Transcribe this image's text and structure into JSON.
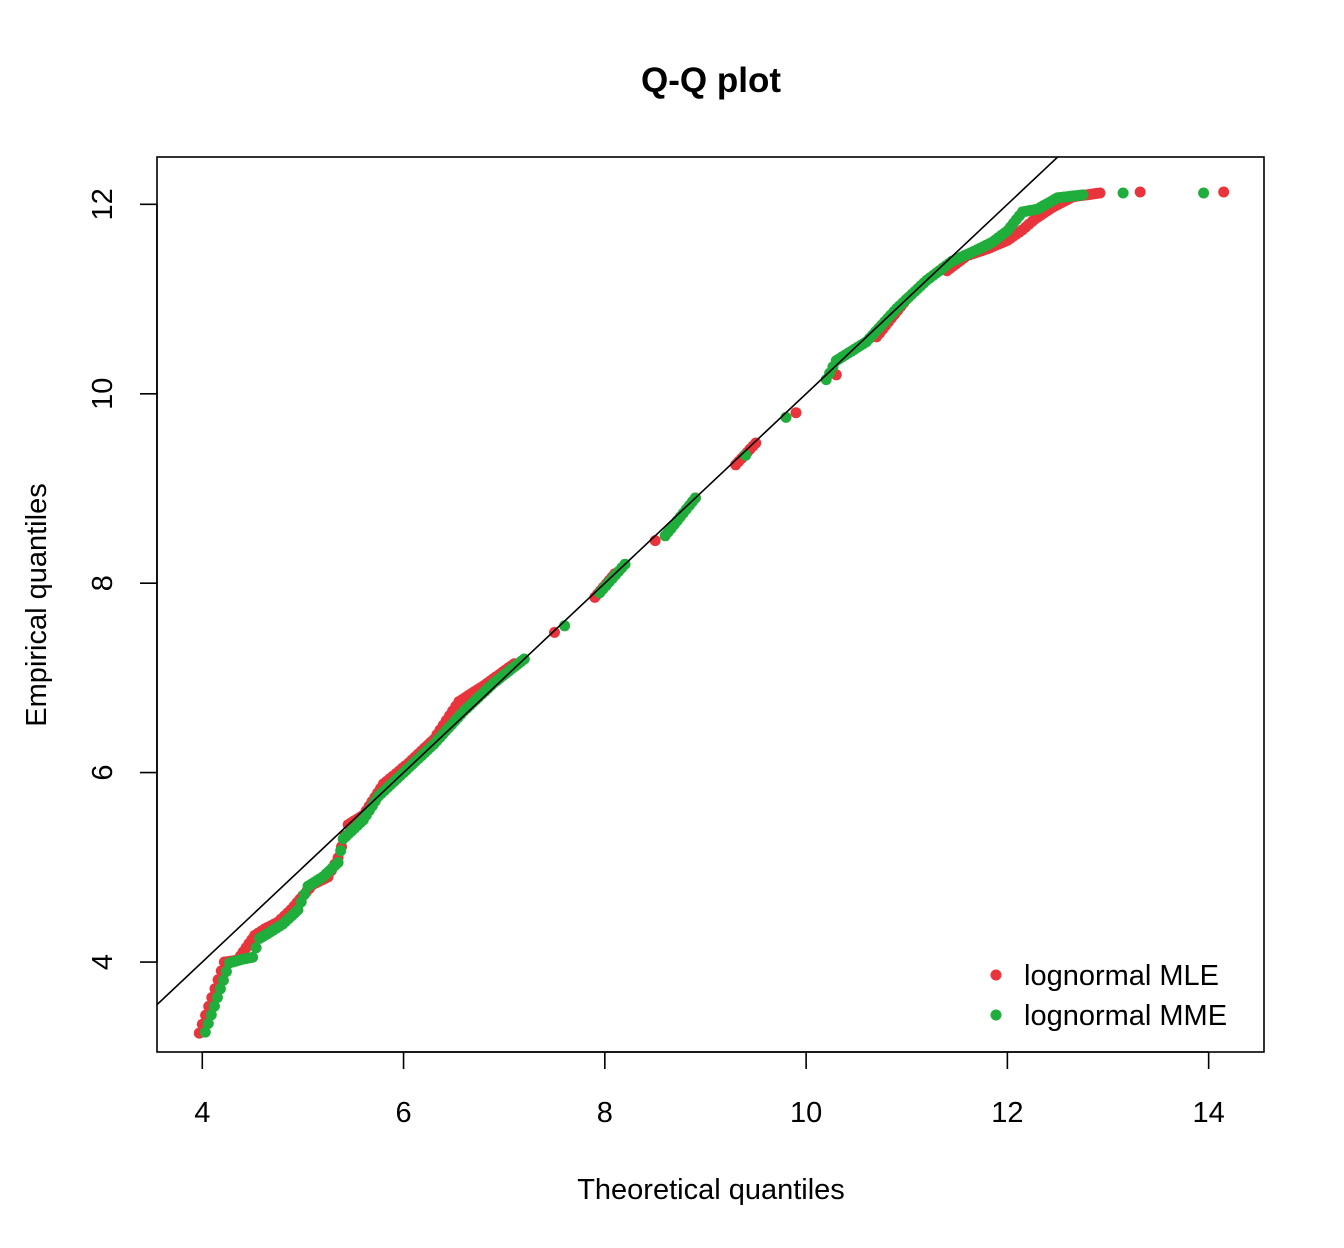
{
  "chart_data": {
    "type": "scatter",
    "title": "Q-Q plot",
    "xlabel": "Theoretical quantiles",
    "ylabel": "Empirical quantiles",
    "xlim": [
      3.55,
      14.55
    ],
    "ylim": [
      3.05,
      12.5
    ],
    "xticks": [
      4,
      6,
      8,
      10,
      12,
      14
    ],
    "yticks": [
      4,
      6,
      8,
      10,
      12
    ],
    "grid": false,
    "legend_position": "bottom-right",
    "reference_line": {
      "intercept": 0,
      "slope": 1,
      "color": "#000000"
    },
    "series": [
      {
        "name": "lognormal MLE",
        "color": "#e8343a",
        "anchors": [
          [
            3.97,
            3.25
          ],
          [
            4.22,
            4.0
          ],
          [
            4.35,
            4.02
          ],
          [
            4.52,
            4.28
          ],
          [
            4.62,
            4.35
          ],
          [
            4.75,
            4.42
          ],
          [
            4.88,
            4.55
          ],
          [
            5.0,
            4.7
          ],
          [
            5.1,
            4.82
          ],
          [
            5.25,
            4.9
          ],
          [
            5.35,
            5.1
          ],
          [
            5.45,
            5.45
          ],
          [
            5.6,
            5.55
          ],
          [
            5.8,
            5.88
          ],
          [
            6.05,
            6.1
          ],
          [
            6.3,
            6.35
          ],
          [
            6.55,
            6.75
          ],
          [
            6.8,
            6.92
          ],
          [
            7.1,
            7.15
          ],
          [
            7.5,
            7.48
          ],
          [
            7.9,
            7.85
          ],
          [
            8.1,
            8.1
          ],
          [
            8.5,
            8.45
          ],
          [
            8.9,
            8.9
          ],
          [
            9.3,
            9.25
          ],
          [
            9.5,
            9.48
          ],
          [
            9.9,
            9.8
          ],
          [
            10.3,
            10.2
          ],
          [
            10.7,
            10.6
          ],
          [
            11.0,
            11.0
          ],
          [
            11.4,
            11.3
          ],
          [
            11.6,
            11.46
          ],
          [
            11.8,
            11.53
          ],
          [
            12.0,
            11.62
          ],
          [
            12.15,
            11.73
          ],
          [
            12.28,
            11.85
          ],
          [
            12.45,
            11.97
          ],
          [
            12.65,
            12.08
          ],
          [
            12.92,
            12.12
          ],
          [
            13.32,
            12.13
          ],
          [
            14.15,
            12.13
          ]
        ]
      },
      {
        "name": "lognormal MME",
        "color": "#1fae3b",
        "anchors": [
          [
            4.03,
            3.26
          ],
          [
            4.27,
            3.99
          ],
          [
            4.4,
            4.03
          ],
          [
            4.5,
            4.05
          ],
          [
            4.57,
            4.25
          ],
          [
            4.65,
            4.3
          ],
          [
            4.8,
            4.4
          ],
          [
            4.95,
            4.55
          ],
          [
            5.05,
            4.8
          ],
          [
            5.2,
            4.9
          ],
          [
            5.35,
            5.05
          ],
          [
            5.4,
            5.3
          ],
          [
            5.6,
            5.5
          ],
          [
            5.75,
            5.75
          ],
          [
            6.0,
            6.0
          ],
          [
            6.3,
            6.3
          ],
          [
            6.6,
            6.65
          ],
          [
            6.9,
            6.95
          ],
          [
            7.2,
            7.2
          ],
          [
            7.6,
            7.55
          ],
          [
            7.95,
            7.9
          ],
          [
            8.2,
            8.2
          ],
          [
            8.6,
            8.5
          ],
          [
            8.9,
            8.9
          ],
          [
            9.4,
            9.35
          ],
          [
            9.8,
            9.75
          ],
          [
            10.2,
            10.15
          ],
          [
            10.3,
            10.35
          ],
          [
            10.6,
            10.55
          ],
          [
            10.9,
            10.9
          ],
          [
            11.2,
            11.2
          ],
          [
            11.45,
            11.4
          ],
          [
            11.7,
            11.52
          ],
          [
            11.85,
            11.6
          ],
          [
            12.0,
            11.72
          ],
          [
            12.15,
            11.92
          ],
          [
            12.3,
            11.95
          ],
          [
            12.5,
            12.07
          ],
          [
            12.75,
            12.1
          ],
          [
            13.15,
            12.12
          ],
          [
            13.95,
            12.12
          ]
        ]
      }
    ]
  }
}
